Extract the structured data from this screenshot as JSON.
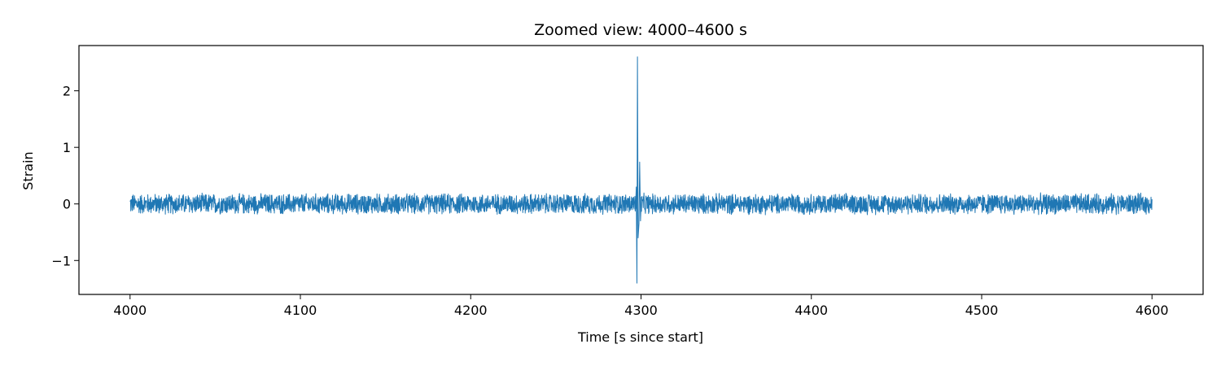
{
  "chart_data": {
    "type": "line",
    "title": "Zoomed view: 4000–4600 s",
    "xlabel": "Time [s since start]",
    "ylabel": "Strain",
    "xlim": [
      3970,
      4630
    ],
    "ylim": [
      -1.6,
      2.8
    ],
    "x_ticks": [
      4000,
      4100,
      4200,
      4300,
      4400,
      4500,
      4600
    ],
    "y_ticks": [
      {
        "value": -1,
        "label": "−1"
      },
      {
        "value": 0,
        "label": "0"
      },
      {
        "value": 1,
        "label": "1"
      },
      {
        "value": 2,
        "label": "2"
      }
    ],
    "grid": false,
    "series": [
      {
        "color": "#1f77b4",
        "x_range": [
          4000,
          4600
        ],
        "noise_amplitude": 0.2,
        "events": [
          {
            "x": 4296.8,
            "y": -0.08
          },
          {
            "x": 4297.2,
            "y": 0.3
          },
          {
            "x": 4297.6,
            "y": -1.4
          },
          {
            "x": 4297.9,
            "y": 2.6
          },
          {
            "x": 4298.3,
            "y": -0.6
          },
          {
            "x": 4298.8,
            "y": -0.35
          },
          {
            "x": 4299.2,
            "y": 0.74
          },
          {
            "x": 4299.7,
            "y": -0.3
          },
          {
            "x": 4300.2,
            "y": 0.12
          }
        ]
      }
    ]
  }
}
